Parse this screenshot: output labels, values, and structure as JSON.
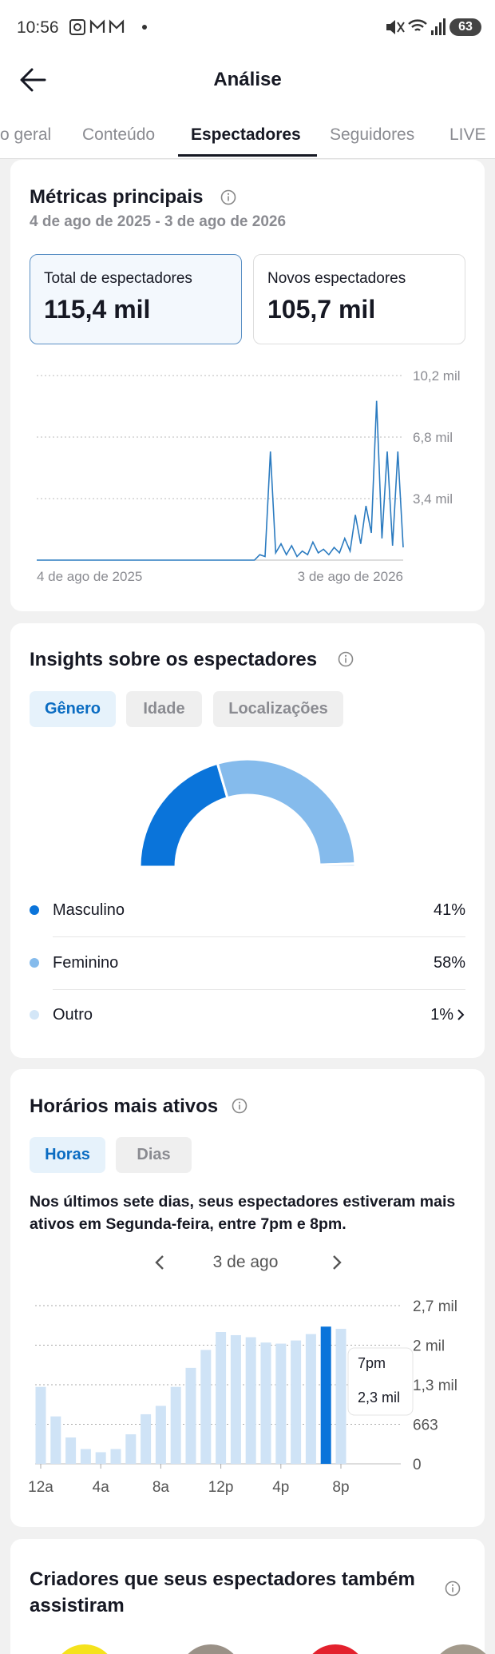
{
  "status": {
    "time": "10:56",
    "battery": "63"
  },
  "header": {
    "title": "Análise",
    "tabs": [
      "o geral",
      "Conteúdo",
      "Espectadores",
      "Seguidores",
      "LIVE"
    ],
    "active_tab": 2
  },
  "metrics": {
    "title": "Métricas principais",
    "date_range": "4 de ago de 2025 - 3 de ago de 2026",
    "cards": [
      {
        "label": "Total de espectadores",
        "value": "115,4 mil"
      },
      {
        "label": "Novos espectadores",
        "value": "105,7 mil"
      }
    ],
    "chart": {
      "type": "line",
      "color": "#2b7bc0",
      "x_labels": [
        "4 de ago de 2025",
        "3 de ago de 2026"
      ],
      "values": [
        0,
        0,
        0,
        0,
        0,
        0,
        0,
        0,
        0,
        0,
        0,
        0,
        0,
        0,
        0,
        0,
        0,
        0,
        0,
        0,
        0,
        0,
        0,
        0,
        0,
        0,
        0,
        0,
        0,
        0,
        0,
        0,
        0,
        0,
        0,
        0,
        0,
        0,
        0,
        0,
        0,
        0,
        300,
        200,
        6000,
        400,
        900,
        300,
        800,
        200,
        500,
        300,
        1000,
        400,
        600,
        300,
        700,
        400,
        1200,
        500,
        2500,
        900,
        3000,
        1500,
        8800,
        1200,
        6000,
        800,
        6000,
        700
      ],
      "ylim": [
        0,
        10200
      ],
      "yticks": [
        {
          "value": 3400,
          "label": "3,4 mil"
        },
        {
          "value": 6800,
          "label": "6,8 mil"
        },
        {
          "value": 10200,
          "label": "10,2 mil"
        }
      ],
      "grid": true
    }
  },
  "insights": {
    "title": "Insights sobre os espectadores",
    "tabs": [
      "Gênero",
      "Idade",
      "Localizações"
    ],
    "chart": {
      "type": "donut",
      "categories": [
        "Masculino",
        "Feminino",
        "Outro"
      ],
      "values": [
        41,
        58,
        1
      ],
      "value_labels": [
        "41%",
        "58%",
        "1%"
      ],
      "colors": [
        "#0a74da",
        "#85bbec",
        "#d3e6f7"
      ]
    }
  },
  "active_times": {
    "title": "Horários mais ativos",
    "tabs": [
      "Horas",
      "Dias"
    ],
    "summary": "Nos últimos sete dias, seus espectadores estiveram mais ativos em Segunda-feira, entre 7pm e 8pm.",
    "nav_date": "3 de ago",
    "chart": {
      "type": "bar",
      "categories": [
        "12a",
        null,
        null,
        null,
        "4a",
        null,
        null,
        null,
        "8a",
        null,
        null,
        null,
        "12p",
        null,
        null,
        null,
        "4p",
        null,
        null,
        null,
        "8p"
      ],
      "values": [
        1290,
        795,
        442,
        248,
        195,
        248,
        495,
        831,
        972,
        1290,
        1609,
        1909,
        2210,
        2157,
        2122,
        2033,
        2015,
        2068,
        2175,
        2300,
        2263
      ],
      "color": "#cfe3f6",
      "highlight_color": "#0a74da",
      "highlight": 19,
      "tooltip": {
        "label": "7pm",
        "value": "2,3 mil"
      },
      "ylim": [
        0,
        2652
      ],
      "yticks": [
        0,
        663,
        {
          "value": 1326,
          "label": "1,3 mil"
        },
        {
          "value": 1989,
          "label": "2 mil"
        },
        {
          "value": 2652,
          "label": "2,7 mil"
        }
      ],
      "grid": true
    }
  },
  "creators": {
    "title": "Criadores que seus espectadores também assistiram"
  }
}
